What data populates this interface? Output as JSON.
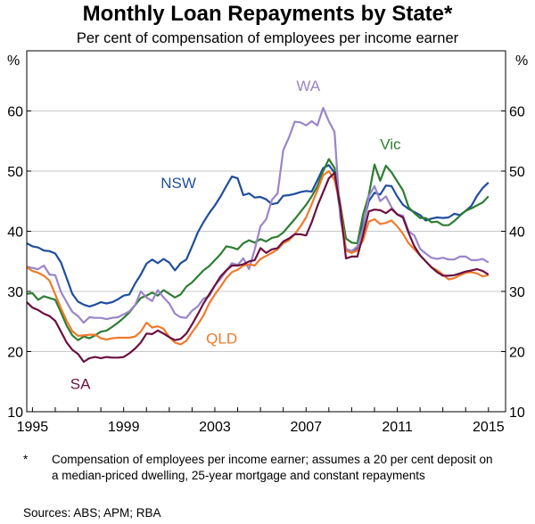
{
  "chart_data": {
    "type": "line",
    "title": "Monthly Loan Repayments by State*",
    "subtitle": "Per cent of compensation of employees per income earner",
    "yunit": "%",
    "ylim": [
      10,
      70
    ],
    "yticks": [
      10,
      20,
      30,
      40,
      50,
      60
    ],
    "xlim": [
      1994.75,
      2015.75
    ],
    "xticks": [
      1995,
      1999,
      2003,
      2007,
      2011,
      2015
    ],
    "grid": true,
    "series": [
      {
        "name": "NSW",
        "color": "#1f4e9c",
        "x": [
          1994.75,
          1995,
          1995.25,
          1995.5,
          1995.75,
          1996,
          1996.25,
          1996.5,
          1996.75,
          1997,
          1997.25,
          1997.5,
          1997.75,
          1998,
          1998.25,
          1998.5,
          1998.75,
          1999,
          1999.25,
          1999.5,
          1999.75,
          2000,
          2000.25,
          2000.5,
          2000.75,
          2001,
          2001.25,
          2001.5,
          2001.75,
          2002,
          2002.25,
          2002.5,
          2002.75,
          2003,
          2003.25,
          2003.5,
          2003.75,
          2004,
          2004.25,
          2004.5,
          2004.75,
          2005,
          2005.25,
          2005.5,
          2005.75,
          2006,
          2006.25,
          2006.5,
          2006.75,
          2007,
          2007.25,
          2007.5,
          2007.75,
          2008,
          2008.25,
          2008.5,
          2008.75,
          2009,
          2009.25,
          2009.5,
          2009.75,
          2010,
          2010.25,
          2010.5,
          2010.75,
          2011,
          2011.25,
          2011.5,
          2011.75,
          2012,
          2012.25,
          2012.5,
          2012.75,
          2013,
          2013.25,
          2013.5,
          2013.75,
          2014,
          2014.25,
          2014.5,
          2014.75,
          2015
        ],
        "y": [
          38,
          37.5,
          37.3,
          36.8,
          36.7,
          36.3,
          34.8,
          32.2,
          29.6,
          28.3,
          27.8,
          27.5,
          27.8,
          28.2,
          28,
          28.2,
          28.7,
          29.3,
          29.5,
          31.3,
          32.8,
          34.6,
          35.3,
          34.7,
          35.4,
          34.8,
          33.5,
          34.7,
          35.3,
          37.5,
          39.8,
          41.5,
          43,
          44.3,
          45.8,
          47.5,
          49.1,
          48.8,
          46,
          46.3,
          45.6,
          45.7,
          45.3,
          44.5,
          44.7,
          45.9,
          46,
          46.2,
          46.5,
          46.7,
          46.6,
          48.5,
          50.5,
          51,
          49.7,
          43.2,
          36.9,
          36.7,
          37.2,
          41.2,
          45,
          46.4,
          46.1,
          47.6,
          47.5,
          45.8,
          44.4,
          43.7,
          43.2,
          42.7,
          41.8,
          42.1,
          42.3,
          42.2,
          42.3,
          42.9,
          42.7,
          43.4,
          44.2,
          45.9,
          47.2,
          48.1
        ]
      },
      {
        "name": "Vic",
        "color": "#2e7d32",
        "x": [
          1994.75,
          1995,
          1995.25,
          1995.5,
          1995.75,
          1996,
          1996.25,
          1996.5,
          1996.75,
          1997,
          1997.25,
          1997.5,
          1997.75,
          1998,
          1998.25,
          1998.5,
          1998.75,
          1999,
          1999.25,
          1999.5,
          1999.75,
          2000,
          2000.25,
          2000.5,
          2000.75,
          2001,
          2001.25,
          2001.5,
          2001.75,
          2002,
          2002.25,
          2002.5,
          2002.75,
          2003,
          2003.25,
          2003.5,
          2003.75,
          2004,
          2004.25,
          2004.5,
          2004.75,
          2005,
          2005.25,
          2005.5,
          2005.75,
          2006,
          2006.25,
          2006.5,
          2006.75,
          2007,
          2007.25,
          2007.5,
          2007.75,
          2008,
          2008.25,
          2008.5,
          2008.75,
          2009,
          2009.25,
          2009.5,
          2009.75,
          2010,
          2010.25,
          2010.5,
          2010.75,
          2011,
          2011.25,
          2011.5,
          2011.75,
          2012,
          2012.25,
          2012.5,
          2012.75,
          2013,
          2013.25,
          2013.5,
          2013.75,
          2014,
          2014.25,
          2014.5,
          2014.75,
          2015
        ],
        "y": [
          29.6,
          29.7,
          28.6,
          29.2,
          28.9,
          28.6,
          26.5,
          24.3,
          22.7,
          21.9,
          22.5,
          22.2,
          22.7,
          23.3,
          23.5,
          24.1,
          24.8,
          25.6,
          26.5,
          27.7,
          28.9,
          29.3,
          29.8,
          29.3,
          30.2,
          29.6,
          29,
          29.5,
          30.8,
          31.5,
          32.5,
          33.5,
          34.2,
          35.2,
          36.2,
          37.5,
          37.3,
          37,
          38,
          38.5,
          38.1,
          38.7,
          38.3,
          38.9,
          39.1,
          39.8,
          40.9,
          42,
          43.2,
          44.4,
          45.8,
          47.5,
          50,
          52,
          50.5,
          44.5,
          38.8,
          38.1,
          38,
          42.8,
          46,
          51.1,
          48.4,
          50.9,
          49.8,
          48.3,
          46.8,
          44,
          43,
          42.2,
          42.2,
          41.5,
          41.6,
          41,
          41,
          41.7,
          42.6,
          43.4,
          43.8,
          44.3,
          44.8,
          45.8
        ]
      },
      {
        "name": "WA",
        "color": "#9a85c9",
        "x": [
          1994.75,
          1995,
          1995.25,
          1995.5,
          1995.75,
          1996,
          1996.25,
          1996.5,
          1996.75,
          1997,
          1997.25,
          1997.5,
          1997.75,
          1998,
          1998.25,
          1998.5,
          1998.75,
          1999,
          1999.25,
          1999.5,
          1999.75,
          2000,
          2000.25,
          2000.5,
          2000.75,
          2001,
          2001.25,
          2001.5,
          2001.75,
          2002,
          2002.25,
          2002.5,
          2002.75,
          2003,
          2003.25,
          2003.5,
          2003.75,
          2004,
          2004.25,
          2004.5,
          2004.75,
          2005,
          2005.25,
          2005.5,
          2005.75,
          2006,
          2006.25,
          2006.5,
          2006.75,
          2007,
          2007.25,
          2007.5,
          2007.75,
          2008,
          2008.25,
          2008.5,
          2008.75,
          2009,
          2009.25,
          2009.5,
          2009.75,
          2010,
          2010.25,
          2010.5,
          2010.75,
          2011,
          2011.25,
          2011.5,
          2011.75,
          2012,
          2012.25,
          2012.5,
          2012.75,
          2013,
          2013.25,
          2013.5,
          2013.75,
          2014,
          2014.25,
          2014.5,
          2014.75,
          2015
        ],
        "y": [
          34.1,
          33.9,
          33.7,
          34.3,
          32.8,
          32.7,
          29.9,
          28.2,
          26.6,
          25.9,
          24.8,
          25.7,
          25.6,
          25.6,
          25.4,
          25.6,
          25.7,
          26.2,
          26.7,
          27.7,
          30,
          29,
          28.4,
          30.2,
          29,
          28,
          26.3,
          25.7,
          25.6,
          26.8,
          27.5,
          28.8,
          29.2,
          31,
          32.1,
          33.4,
          34.7,
          34.4,
          35.5,
          33.7,
          37,
          40.8,
          42,
          45.2,
          46.3,
          53.5,
          55.6,
          58.2,
          58.1,
          57.6,
          58.3,
          57.6,
          60.5,
          58.3,
          56.5,
          42.3,
          37.1,
          36.7,
          37.5,
          40.5,
          45.8,
          47.5,
          45,
          45.8,
          44,
          42.8,
          42.6,
          40,
          39.3,
          37.1,
          36.3,
          35.6,
          35.4,
          35.6,
          35.3,
          35.3,
          35.8,
          35.8,
          35.2,
          35.2,
          35.4,
          34.8
        ]
      },
      {
        "name": "QLD",
        "color": "#f07a2c",
        "x": [
          1994.75,
          1995,
          1995.25,
          1995.5,
          1995.75,
          1996,
          1996.25,
          1996.5,
          1996.75,
          1997,
          1997.25,
          1997.5,
          1997.75,
          1998,
          1998.25,
          1998.5,
          1998.75,
          1999,
          1999.25,
          1999.5,
          1999.75,
          2000,
          2000.25,
          2000.5,
          2000.75,
          2001,
          2001.25,
          2001.5,
          2001.75,
          2002,
          2002.25,
          2002.5,
          2002.75,
          2003,
          2003.25,
          2003.5,
          2003.75,
          2004,
          2004.25,
          2004.5,
          2004.75,
          2005,
          2005.25,
          2005.5,
          2005.75,
          2006,
          2006.25,
          2006.5,
          2006.75,
          2007,
          2007.25,
          2007.5,
          2007.75,
          2008,
          2008.25,
          2008.5,
          2008.75,
          2009,
          2009.25,
          2009.5,
          2009.75,
          2010,
          2010.25,
          2010.5,
          2010.75,
          2011,
          2011.25,
          2011.5,
          2011.75,
          2012,
          2012.25,
          2012.5,
          2012.75,
          2013,
          2013.25,
          2013.5,
          2013.75,
          2014,
          2014.25,
          2014.5,
          2014.75,
          2015
        ],
        "y": [
          34,
          33.4,
          33.1,
          32.6,
          31.8,
          29.5,
          27.2,
          25.1,
          23.4,
          22.6,
          22.7,
          22.8,
          22.8,
          22.2,
          22,
          22.2,
          22.3,
          22.3,
          22.3,
          22.5,
          23.3,
          24.8,
          24,
          24.2,
          23.8,
          22.4,
          21.5,
          21.2,
          21.8,
          23.2,
          24.5,
          26,
          28,
          29.5,
          30.8,
          32.2,
          33.2,
          33.6,
          34.3,
          34.5,
          34.3,
          35.4,
          35.9,
          36.4,
          37,
          38,
          38.5,
          39.5,
          40.8,
          42.3,
          44.5,
          46.8,
          49.3,
          50,
          48.5,
          44.3,
          36.8,
          36.4,
          36.8,
          38.5,
          41.6,
          42,
          41.2,
          41.4,
          41.8,
          40.8,
          39.6,
          38,
          37,
          36,
          35,
          34,
          33.5,
          32.8,
          32,
          32.2,
          32.7,
          33.1,
          33.2,
          33,
          32.5,
          32.7
        ]
      },
      {
        "name": "SA",
        "color": "#6b1040",
        "x": [
          1994.75,
          1995,
          1995.25,
          1995.5,
          1995.75,
          1996,
          1996.25,
          1996.5,
          1996.75,
          1997,
          1997.25,
          1997.5,
          1997.75,
          1998,
          1998.25,
          1998.5,
          1998.75,
          1999,
          1999.25,
          1999.5,
          1999.75,
          2000,
          2000.25,
          2000.5,
          2000.75,
          2001,
          2001.25,
          2001.5,
          2001.75,
          2002,
          2002.25,
          2002.5,
          2002.75,
          2003,
          2003.25,
          2003.5,
          2003.75,
          2004,
          2004.25,
          2004.5,
          2004.75,
          2005,
          2005.25,
          2005.5,
          2005.75,
          2006,
          2006.25,
          2006.5,
          2006.75,
          2007,
          2007.25,
          2007.5,
          2007.75,
          2008,
          2008.25,
          2008.5,
          2008.75,
          2009,
          2009.25,
          2009.5,
          2009.75,
          2010,
          2010.25,
          2010.5,
          2010.75,
          2011,
          2011.25,
          2011.5,
          2011.75,
          2012,
          2012.25,
          2012.5,
          2012.75,
          2013,
          2013.25,
          2013.5,
          2013.75,
          2014,
          2014.25,
          2014.5,
          2014.75,
          2015
        ],
        "y": [
          28.2,
          27.3,
          26.9,
          26.3,
          25.9,
          25.1,
          23.3,
          21.5,
          20.3,
          19.6,
          18.3,
          18.9,
          19.1,
          18.9,
          19.1,
          19,
          19,
          19.1,
          19.7,
          20.5,
          21.5,
          23,
          22.9,
          23.5,
          23,
          22.4,
          21.9,
          22.1,
          23,
          24.5,
          26.2,
          28,
          29.5,
          31,
          32.5,
          33.5,
          34.3,
          34.3,
          34.5,
          35,
          35.2,
          37.2,
          36.4,
          37,
          37.2,
          38.3,
          38.8,
          39.5,
          39.5,
          39.3,
          41.5,
          44.2,
          46.5,
          48.8,
          49.7,
          44,
          35.5,
          35.8,
          35.8,
          39.4,
          43.3,
          43.6,
          43.5,
          43,
          43.7,
          42.8,
          42.3,
          39.7,
          37.5,
          36,
          35,
          34,
          33.2,
          32.6,
          32.6,
          32.7,
          33,
          33.3,
          33.5,
          33.7,
          33.4,
          32.8
        ]
      }
    ],
    "series_labels": [
      {
        "series": "NSW",
        "text": "NSW",
        "x": 2001.4,
        "y": 47.2
      },
      {
        "series": "Vic",
        "text": "Vic",
        "x": 2010.7,
        "y": 53.6
      },
      {
        "series": "WA",
        "text": "WA",
        "x": 2007.1,
        "y": 63.3
      },
      {
        "series": "QLD",
        "text": "QLD",
        "x": 2003.3,
        "y": 21.3
      },
      {
        "series": "SA",
        "text": "SA",
        "x": 1997.1,
        "y": 13.8
      }
    ]
  },
  "footnote": {
    "marker": "*",
    "text": "Compensation of employees per income earner; assumes a 20 per cent deposit on a median-priced dwelling, 25-year mortgage and constant repayments"
  },
  "sources": "Sources:   ABS; APM; RBA"
}
